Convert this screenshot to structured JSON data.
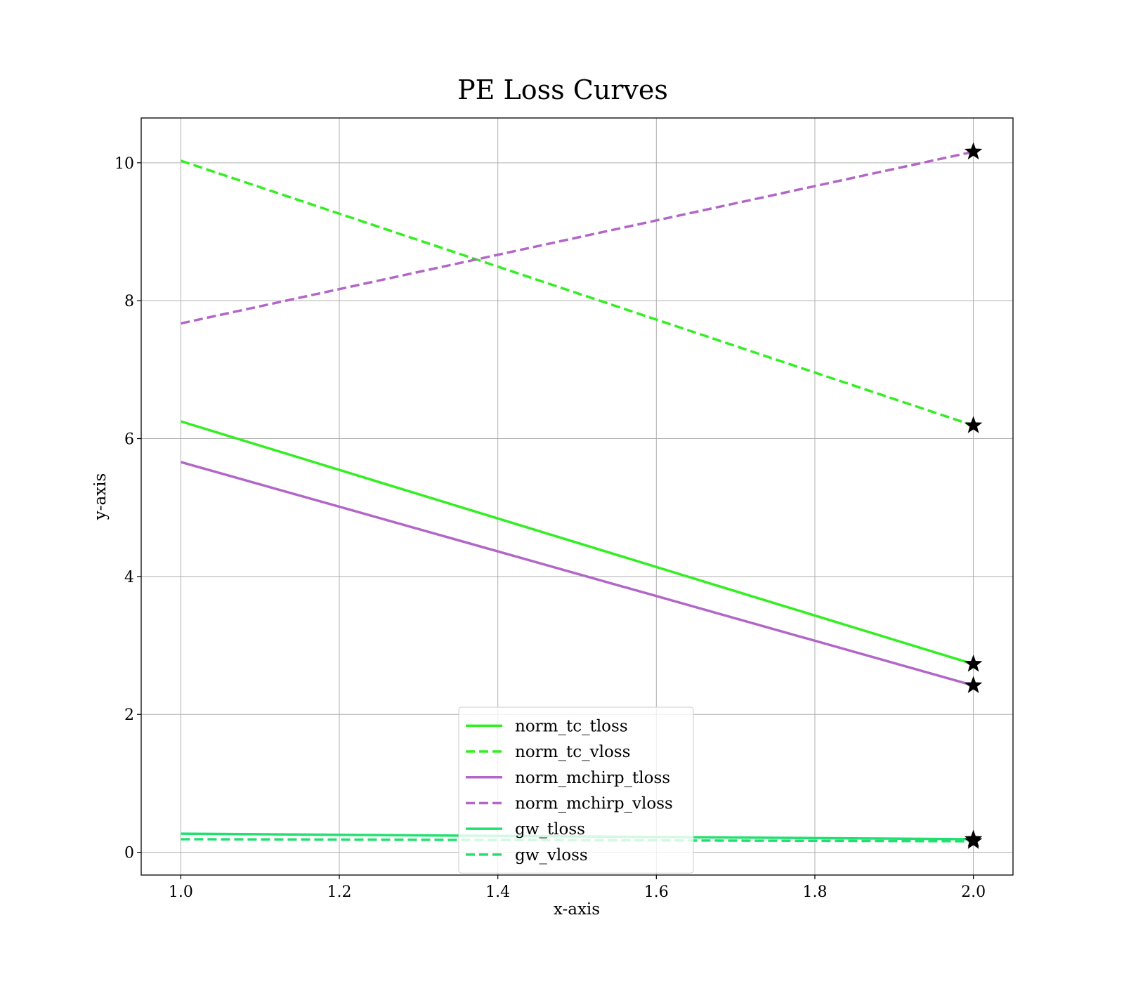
{
  "chart_data": {
    "type": "line",
    "title": "PE Loss Curves",
    "xlabel": "x-axis",
    "ylabel": "y-axis",
    "xlim": [
      0.95,
      2.05
    ],
    "ylim": [
      -0.33,
      10.65
    ],
    "x_ticks": [
      1.0,
      1.2,
      1.4,
      1.6,
      1.8,
      2.0
    ],
    "x_tick_labels": [
      "1.0",
      "1.2",
      "1.4",
      "1.6",
      "1.8",
      "2.0"
    ],
    "y_ticks": [
      0,
      2,
      4,
      6,
      8,
      10
    ],
    "y_tick_labels": [
      "0",
      "2",
      "4",
      "6",
      "8",
      "10"
    ],
    "grid": true,
    "legend_position": "lower-center",
    "end_marker": "star",
    "x": [
      1.0,
      2.0
    ],
    "series": [
      {
        "name": "norm_tc_tloss",
        "values": [
          6.25,
          2.73
        ],
        "color": "#33ee22",
        "style": "solid"
      },
      {
        "name": "norm_tc_vloss",
        "values": [
          10.03,
          6.19
        ],
        "color": "#33ee22",
        "style": "dashed"
      },
      {
        "name": "norm_mchirp_tloss",
        "values": [
          5.66,
          2.42
        ],
        "color": "#b266c8",
        "style": "solid"
      },
      {
        "name": "norm_mchirp_vloss",
        "values": [
          7.67,
          10.16
        ],
        "color": "#b266c8",
        "style": "dashed"
      },
      {
        "name": "gw_tloss",
        "values": [
          0.27,
          0.19
        ],
        "color": "#22e070",
        "style": "solid"
      },
      {
        "name": "gw_vloss",
        "values": [
          0.19,
          0.16
        ],
        "color": "#22e070",
        "style": "dashed"
      }
    ]
  }
}
